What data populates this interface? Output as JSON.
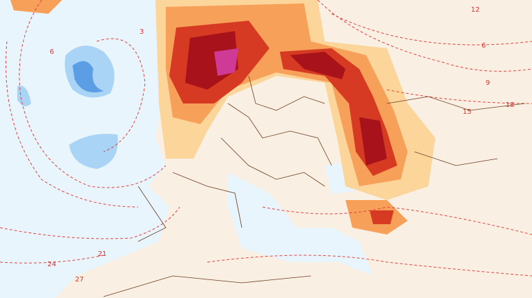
{
  "map": {
    "contour_labels": [
      "12",
      "6",
      "9",
      "15",
      "18",
      "3",
      "6",
      "21",
      "24",
      "27"
    ]
  }
}
